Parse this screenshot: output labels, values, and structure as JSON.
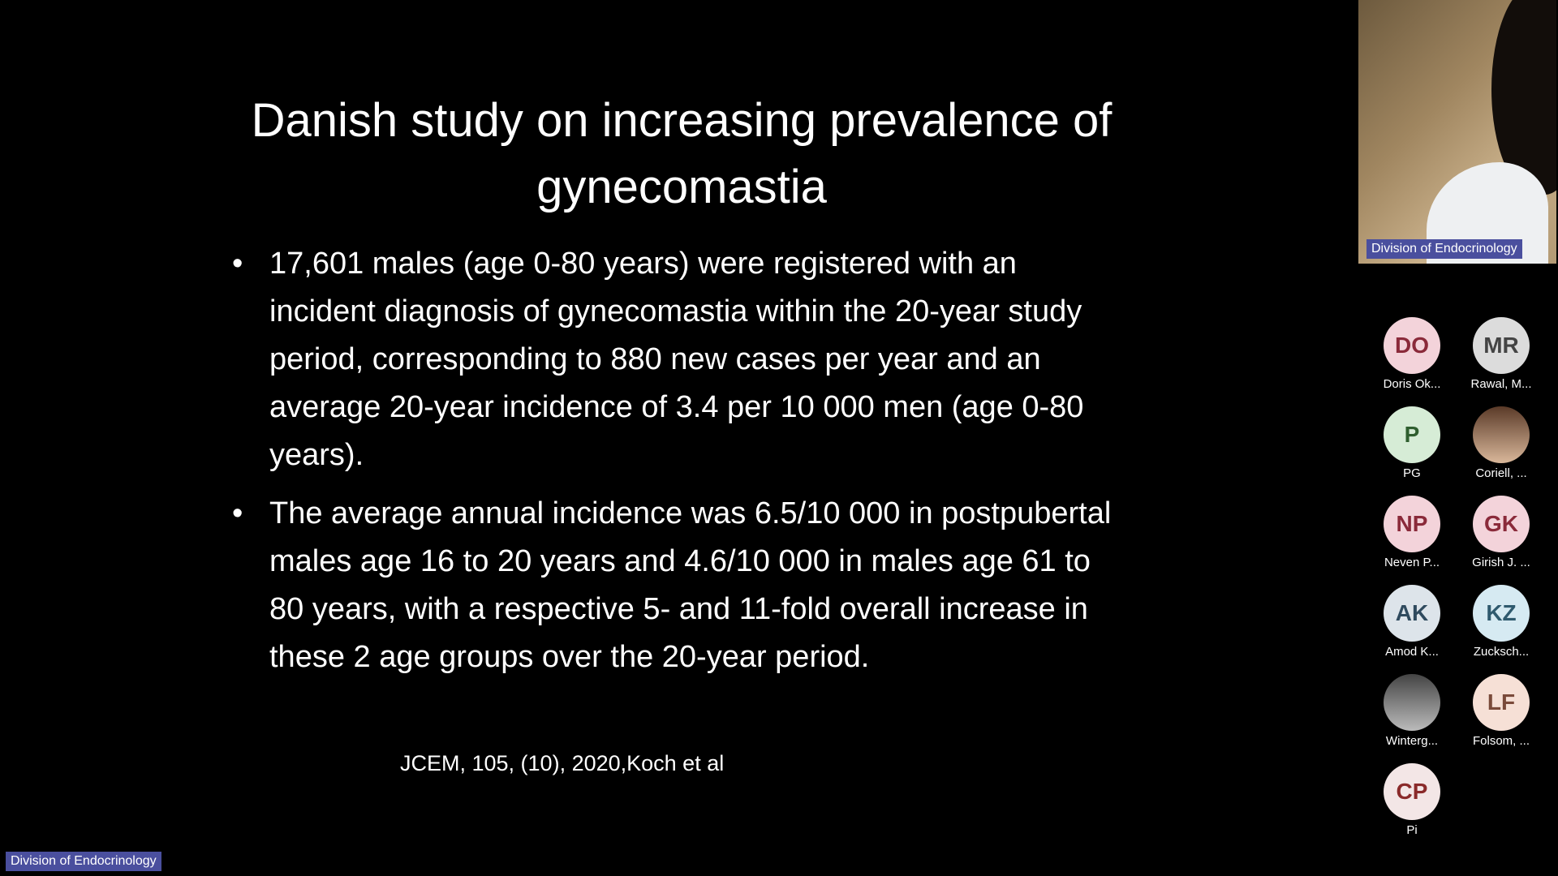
{
  "slide": {
    "title": "Danish study on increasing prevalence of gynecomastia",
    "bullets": [
      "17,601 males (age 0-80 years) were registered with an incident diagnosis of gynecomastia within the 20-year study period, corresponding to 880 new cases per year and an average 20-year incidence of 3.4 per 10 000 men (age 0-80 years).",
      "The average annual incidence was 6.5/10 000 in postpubertal males age 16 to 20 years and 4.6/10 000 in males age 61 to 80 years, with a respective 5- and 11-fold overall increase in these 2 age groups over the 20-year period."
    ],
    "citation": "JCEM, 105, (10), 2020,Koch  et al"
  },
  "speaker": {
    "label": "Division of Endocrinology"
  },
  "presenter_label": "Division of Endocrinology",
  "participants": [
    {
      "initials": "DO",
      "name": "Doris Ok..."
    },
    {
      "initials": "MR",
      "name": "Rawal, M..."
    },
    {
      "initials": "P",
      "name": "PG"
    },
    {
      "name": "Coriell, ..."
    },
    {
      "initials": "NP",
      "name": "Neven P..."
    },
    {
      "initials": "GK",
      "name": "Girish J. ..."
    },
    {
      "initials": "AK",
      "name": "Amod K..."
    },
    {
      "initials": "KZ",
      "name": "Zucksch..."
    },
    {
      "name": "Winterg..."
    },
    {
      "initials": "LF",
      "name": "Folsom, ..."
    },
    {
      "initials": "CP",
      "name": "Pi"
    }
  ]
}
